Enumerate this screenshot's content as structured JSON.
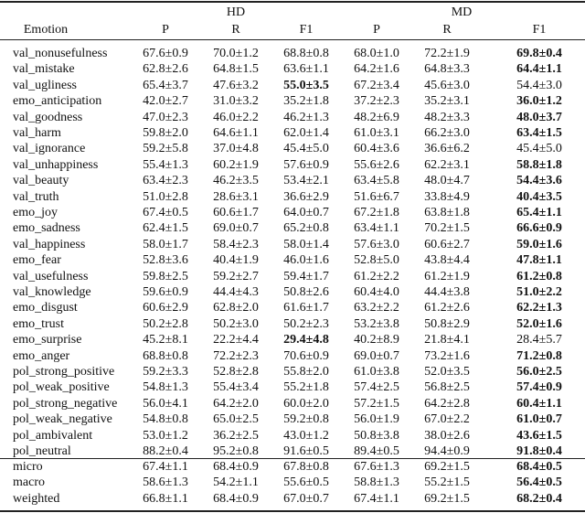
{
  "header": {
    "group_labels": [
      "HD",
      "MD"
    ],
    "first_col": "Emotion",
    "metrics": [
      "P",
      "R",
      "F1",
      "P",
      "R",
      "F1"
    ]
  },
  "rows": [
    {
      "label": "val_nonusefulness",
      "cells": [
        "67.6±0.9",
        "70.0±1.2",
        "68.8±0.8",
        "68.0±1.0",
        "72.2±1.9",
        "69.8±0.4"
      ],
      "bold": [
        5
      ]
    },
    {
      "label": "val_mistake",
      "cells": [
        "62.8±2.6",
        "64.8±1.5",
        "63.6±1.1",
        "64.2±1.6",
        "64.8±3.3",
        "64.4±1.1"
      ],
      "bold": [
        5
      ]
    },
    {
      "label": "val_ugliness",
      "cells": [
        "65.4±3.7",
        "47.6±3.2",
        "55.0±3.5",
        "67.2±3.4",
        "45.6±3.0",
        "54.4±3.0"
      ],
      "bold": [
        2
      ]
    },
    {
      "label": "emo_anticipation",
      "cells": [
        "42.0±2.7",
        "31.0±3.2",
        "35.2±1.8",
        "37.2±2.3",
        "35.2±3.1",
        "36.0±1.2"
      ],
      "bold": [
        5
      ]
    },
    {
      "label": "val_goodness",
      "cells": [
        "47.0±2.3",
        "46.0±2.2",
        "46.2±1.3",
        "48.2±6.9",
        "48.2±3.3",
        "48.0±3.7"
      ],
      "bold": [
        5
      ]
    },
    {
      "label": "val_harm",
      "cells": [
        "59.8±2.0",
        "64.6±1.1",
        "62.0±1.4",
        "61.0±3.1",
        "66.2±3.0",
        "63.4±1.5"
      ],
      "bold": [
        5
      ]
    },
    {
      "label": "val_ignorance",
      "cells": [
        "59.2±5.8",
        "37.0±4.8",
        "45.4±5.0",
        "60.4±3.6",
        "36.6±6.2",
        "45.4±5.0"
      ],
      "bold": []
    },
    {
      "label": "val_unhappiness",
      "cells": [
        "55.4±1.3",
        "60.2±1.9",
        "57.6±0.9",
        "55.6±2.6",
        "62.2±3.1",
        "58.8±1.8"
      ],
      "bold": [
        5
      ]
    },
    {
      "label": "val_beauty",
      "cells": [
        "63.4±2.3",
        "46.2±3.5",
        "53.4±2.1",
        "63.4±5.8",
        "48.0±4.7",
        "54.4±3.6"
      ],
      "bold": [
        5
      ]
    },
    {
      "label": "val_truth",
      "cells": [
        "51.0±2.8",
        "28.6±3.1",
        "36.6±2.9",
        "51.6±6.7",
        "33.8±4.9",
        "40.4±3.5"
      ],
      "bold": [
        5
      ]
    },
    {
      "label": "emo_joy",
      "cells": [
        "67.4±0.5",
        "60.6±1.7",
        "64.0±0.7",
        "67.2±1.8",
        "63.8±1.8",
        "65.4±1.1"
      ],
      "bold": [
        5
      ]
    },
    {
      "label": "emo_sadness",
      "cells": [
        "62.4±1.5",
        "69.0±0.7",
        "65.2±0.8",
        "63.4±1.1",
        "70.2±1.5",
        "66.6±0.9"
      ],
      "bold": [
        5
      ]
    },
    {
      "label": "val_happiness",
      "cells": [
        "58.0±1.7",
        "58.4±2.3",
        "58.0±1.4",
        "57.6±3.0",
        "60.6±2.7",
        "59.0±1.6"
      ],
      "bold": [
        5
      ]
    },
    {
      "label": "emo_fear",
      "cells": [
        "52.8±3.6",
        "40.4±1.9",
        "46.0±1.6",
        "52.8±5.0",
        "43.8±4.4",
        "47.8±1.1"
      ],
      "bold": [
        5
      ]
    },
    {
      "label": "val_usefulness",
      "cells": [
        "59.8±2.5",
        "59.2±2.7",
        "59.4±1.7",
        "61.2±2.2",
        "61.2±1.9",
        "61.2±0.8"
      ],
      "bold": [
        5
      ]
    },
    {
      "label": "val_knowledge",
      "cells": [
        "59.6±0.9",
        "44.4±4.3",
        "50.8±2.6",
        "60.4±4.0",
        "44.4±3.8",
        "51.0±2.2"
      ],
      "bold": [
        5
      ]
    },
    {
      "label": "emo_disgust",
      "cells": [
        "60.6±2.9",
        "62.8±2.0",
        "61.6±1.7",
        "63.2±2.2",
        "61.2±2.6",
        "62.2±1.3"
      ],
      "bold": [
        5
      ]
    },
    {
      "label": "emo_trust",
      "cells": [
        "50.2±2.8",
        "50.2±3.0",
        "50.2±2.3",
        "53.2±3.8",
        "50.8±2.9",
        "52.0±1.6"
      ],
      "bold": [
        5
      ]
    },
    {
      "label": "emo_surprise",
      "cells": [
        "45.2±8.1",
        "22.2±4.4",
        "29.4±4.8",
        "40.2±8.9",
        "21.8±4.1",
        "28.4±5.7"
      ],
      "bold": [
        2
      ]
    },
    {
      "label": "emo_anger",
      "cells": [
        "68.8±0.8",
        "72.2±2.3",
        "70.6±0.9",
        "69.0±0.7",
        "73.2±1.6",
        "71.2±0.8"
      ],
      "bold": [
        5
      ]
    },
    {
      "label": "pol_strong_positive",
      "cells": [
        "59.2±3.3",
        "52.8±2.8",
        "55.8±2.0",
        "61.0±3.8",
        "52.0±3.5",
        "56.0±2.5"
      ],
      "bold": [
        5
      ]
    },
    {
      "label": "pol_weak_positive",
      "cells": [
        "54.8±1.3",
        "55.4±3.4",
        "55.2±1.8",
        "57.4±2.5",
        "56.8±2.5",
        "57.4±0.9"
      ],
      "bold": [
        5
      ]
    },
    {
      "label": "pol_strong_negative",
      "cells": [
        "56.0±4.1",
        "64.2±2.0",
        "60.0±2.0",
        "57.2±1.5",
        "64.2±2.8",
        "60.4±1.1"
      ],
      "bold": [
        5
      ]
    },
    {
      "label": "pol_weak_negative",
      "cells": [
        "54.8±0.8",
        "65.0±2.5",
        "59.2±0.8",
        "56.0±1.9",
        "67.0±2.2",
        "61.0±0.7"
      ],
      "bold": [
        5
      ]
    },
    {
      "label": "pol_ambivalent",
      "cells": [
        "53.0±1.2",
        "36.2±2.5",
        "43.0±1.2",
        "50.8±3.8",
        "38.0±2.6",
        "43.6±1.5"
      ],
      "bold": [
        5
      ]
    },
    {
      "label": "pol_neutral",
      "cells": [
        "88.2±0.4",
        "95.2±0.8",
        "91.6±0.5",
        "89.4±0.5",
        "94.4±0.9",
        "91.8±0.4"
      ],
      "bold": [
        5
      ]
    }
  ],
  "summary_rows": [
    {
      "label": "micro",
      "cells": [
        "67.4±1.1",
        "68.4±0.9",
        "67.8±0.8",
        "67.6±1.3",
        "69.2±1.5",
        "68.4±0.5"
      ],
      "bold": [
        5
      ]
    },
    {
      "label": "macro",
      "cells": [
        "58.6±1.3",
        "54.2±1.1",
        "55.6±0.5",
        "58.8±1.3",
        "55.2±1.5",
        "56.4±0.5"
      ],
      "bold": [
        5
      ]
    },
    {
      "label": "weighted",
      "cells": [
        "66.8±1.1",
        "68.4±0.9",
        "67.0±0.7",
        "67.4±1.1",
        "69.2±1.5",
        "68.2±0.4"
      ],
      "bold": [
        5
      ]
    }
  ]
}
